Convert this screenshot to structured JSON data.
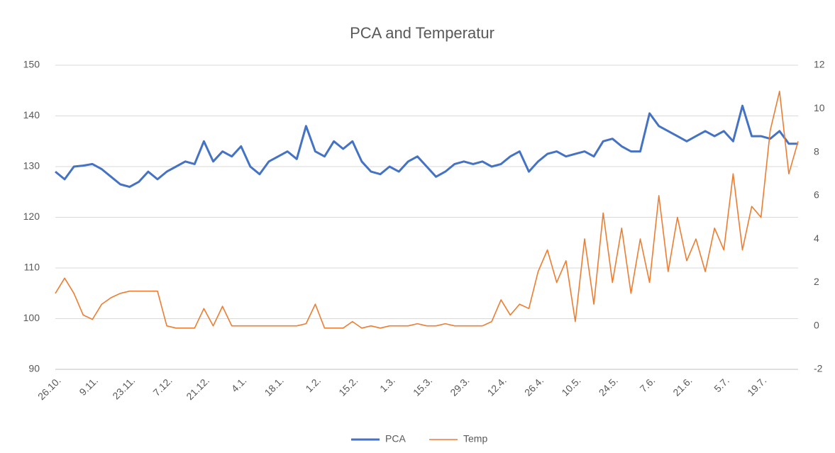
{
  "chart_data": {
    "type": "line",
    "title": "PCA and Temperatur",
    "categories": [
      "26.10.",
      null,
      null,
      null,
      "9.11.",
      null,
      null,
      null,
      "23.11.",
      null,
      null,
      null,
      "7.12.",
      null,
      null,
      null,
      "21.12.",
      null,
      null,
      null,
      "4.1.",
      null,
      null,
      null,
      "18.1.",
      null,
      null,
      null,
      "1.2.",
      null,
      null,
      null,
      "15.2.",
      null,
      null,
      null,
      "1.3.",
      null,
      null,
      null,
      "15.3.",
      null,
      null,
      null,
      "29.3.",
      null,
      null,
      null,
      "12.4.",
      null,
      null,
      null,
      "26.4.",
      null,
      null,
      null,
      "10.5.",
      null,
      null,
      null,
      "24.5.",
      null,
      null,
      null,
      "7.6.",
      null,
      null,
      null,
      "21.6.",
      null,
      null,
      null,
      "5.7.",
      null,
      null,
      null,
      "19.7.",
      null,
      null,
      null,
      null
    ],
    "series": [
      {
        "name": "PCA",
        "color": "#4472c4",
        "values": [
          129,
          127.5,
          130,
          130.2,
          130.5,
          129.5,
          128,
          126.5,
          126,
          127,
          129,
          127.5,
          129,
          130,
          131,
          130.5,
          135,
          131,
          133,
          132,
          134,
          130,
          128.5,
          131,
          132,
          133,
          131.5,
          138,
          133,
          132,
          135,
          133.5,
          135,
          131,
          129,
          128.5,
          130,
          129,
          131,
          132,
          130,
          128,
          129,
          130.5,
          131,
          130.5,
          131,
          130,
          130.5,
          132,
          133,
          129,
          131,
          132.5,
          133,
          132,
          132.5,
          133,
          132,
          135,
          135.5,
          134,
          133,
          133,
          140.5,
          138,
          137,
          136,
          135,
          136,
          137,
          136,
          137,
          135,
          142,
          136,
          136,
          135.5,
          137,
          134.5,
          134.5
        ]
      },
      {
        "name": "Temp",
        "color": "#ed7d31",
        "axis": "y2",
        "values": [
          1.5,
          2.2,
          1.5,
          0.5,
          0.3,
          1.0,
          1.3,
          1.5,
          1.6,
          1.6,
          1.6,
          1.6,
          0,
          -0.1,
          -0.1,
          -0.1,
          0.8,
          0,
          0.9,
          0,
          0,
          0,
          0,
          0,
          0,
          0,
          0,
          0.1,
          1.0,
          -0.1,
          -0.1,
          -0.1,
          0.2,
          -0.1,
          0,
          -0.1,
          0,
          0,
          0,
          0.1,
          0,
          0,
          0.1,
          0,
          0,
          0,
          0,
          0.2,
          1.2,
          0.5,
          1.0,
          0.8,
          2.5,
          3.5,
          2.0,
          3.0,
          0.2,
          4.0,
          1.0,
          5.2,
          2.0,
          4.5,
          1.5,
          4.0,
          2.0,
          6.0,
          2.5,
          5.0,
          3.0,
          4.0,
          2.5,
          4.5,
          3.5,
          7.0,
          3.5,
          5.5,
          5.0,
          9.0,
          10.8,
          7.0,
          8.5
        ]
      }
    ],
    "ylim": [
      90,
      150
    ],
    "yticks": [
      90,
      100,
      110,
      120,
      130,
      140,
      150
    ],
    "y2lim": [
      -2,
      12
    ],
    "y2ticks": [
      -2,
      0,
      2,
      4,
      6,
      8,
      10,
      12
    ],
    "grid": true,
    "legend": "bottom"
  }
}
